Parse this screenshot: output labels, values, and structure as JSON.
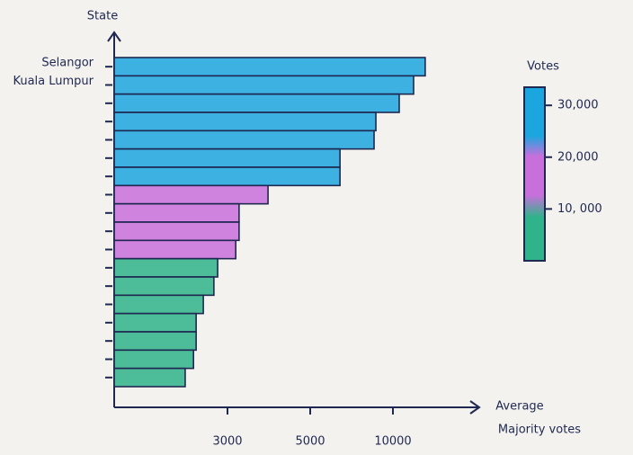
{
  "chart_data": {
    "type": "barh",
    "y_label": "State",
    "x_label": [
      "Average",
      "Majority votes"
    ],
    "categories": [
      "Selangor",
      "Kuala Lumpur",
      null,
      null,
      null,
      null,
      null,
      null,
      null,
      null,
      null,
      null,
      null,
      null,
      null,
      null,
      null,
      null
    ],
    "values": [
      11950,
      11250,
      10380,
      8970,
      8860,
      6800,
      6800,
      3980,
      3280,
      3280,
      3200,
      2740,
      2640,
      2360,
      2170,
      2170,
      2100,
      1880
    ],
    "colors": [
      "#1ba6df",
      "#1ba6df",
      "#1ba6df",
      "#1ba6df",
      "#1ba6df",
      "#1ba6df",
      "#1ba6df",
      "#c96fdc",
      "#c96fdc",
      "#c96fdc",
      "#c96fdc",
      "#2fb38a",
      "#2fb38a",
      "#2fb38a",
      "#2fb38a",
      "#2fb38a",
      "#2fb38a",
      "#2fb38a"
    ],
    "xlim": [
      0,
      15000
    ],
    "xticks": [
      {
        "value": 3000,
        "label": "3000"
      },
      {
        "value": 5000,
        "label": "5000"
      },
      {
        "value": 10000,
        "label": "10000"
      }
    ],
    "colorbar": {
      "title": "Votes",
      "lim": [
        0,
        33500
      ],
      "ticks": [
        {
          "value": 30000,
          "label": "30,000"
        },
        {
          "value": 20000,
          "label": "20,000"
        },
        {
          "value": 10000,
          "label": "10, 000"
        }
      ]
    }
  }
}
